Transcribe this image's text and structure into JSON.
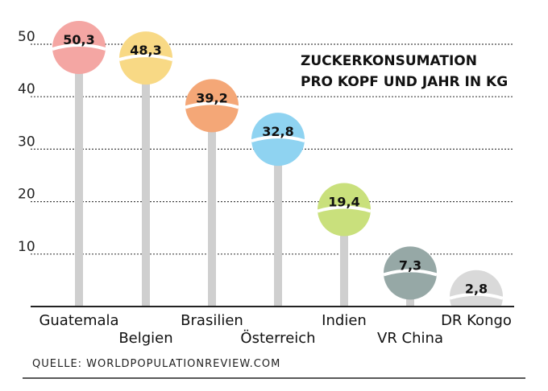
{
  "chart_data": {
    "type": "bar",
    "title_lines": [
      "ZUCKERKONSUMATION",
      "PRO KOPF UND JAHR IN KG"
    ],
    "categories": [
      "Guatemala",
      "Belgien",
      "Brasilien",
      "Österreich",
      "Indien",
      "VR China",
      "DR Kongo"
    ],
    "values": [
      50.3,
      48.3,
      39.2,
      32.8,
      19.4,
      7.3,
      2.8
    ],
    "value_labels": [
      "50,3",
      "48,3",
      "39,2",
      "32,8",
      "19,4",
      "7,3",
      "2,8"
    ],
    "colors": [
      "#f4a6a3",
      "#f8d985",
      "#f4a777",
      "#8fd3f1",
      "#c9e07c",
      "#96a8a6",
      "#d9d9d9"
    ],
    "stick_color": "#cfcfcf",
    "yticks": [
      10,
      20,
      30,
      40,
      50
    ],
    "ylim": [
      0,
      50
    ],
    "grid": true,
    "source": "QUELLE: WORLDPOPULATIONREVIEW.COM"
  }
}
